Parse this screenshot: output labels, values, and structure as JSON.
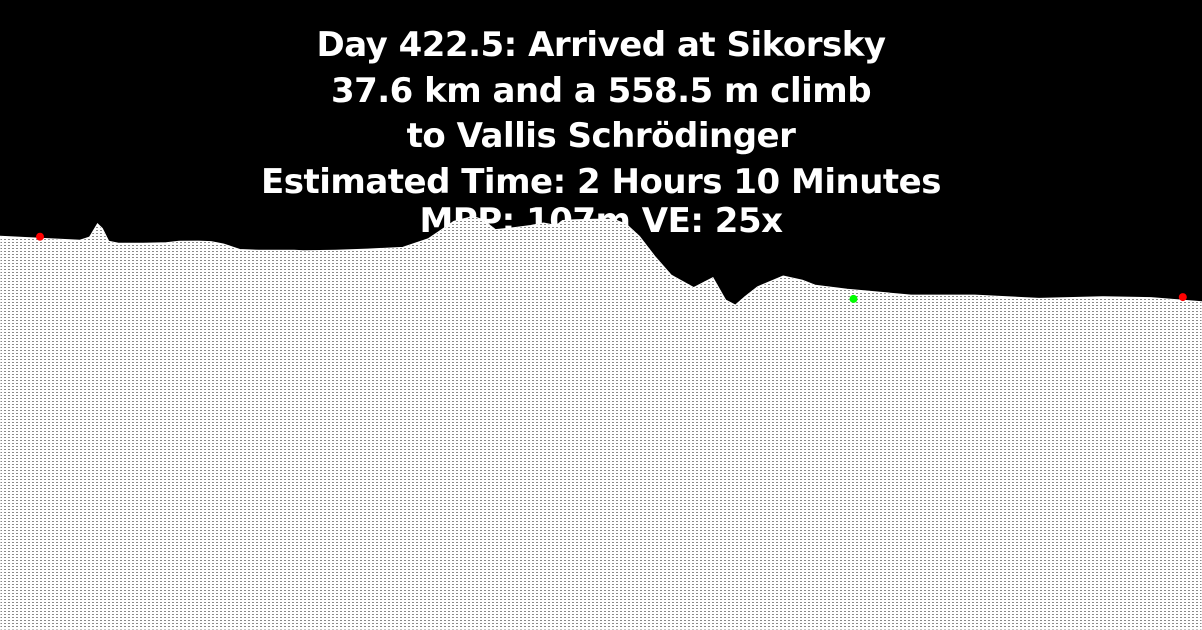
{
  "header": {
    "line1": "Day 422.5: Arrived at Sikorsky",
    "line2": "37.6 km and a 558.5 m climb",
    "line3": "to Vallis Schrödinger",
    "line4": "Estimated Time: 2 Hours 10 Minutes",
    "line5": "MPP: 107m VE: 25x"
  },
  "colors": {
    "background": "#000000",
    "text": "#ffffff",
    "terrain": "#ffffff",
    "marker_red": "#ff0000",
    "marker_green": "#00ff00"
  },
  "chart_data": {
    "type": "area",
    "title": "Day 422.5: Arrived at Sikorsky",
    "xlabel": "",
    "ylabel": "",
    "grid": false,
    "x": [
      0,
      1.25,
      2.5,
      2.8,
      3.05,
      3.2,
      3.4,
      3.7,
      4.5,
      5.2,
      5.6,
      6.2,
      6.6,
      7.0,
      7.5,
      8.1,
      8.6,
      9.2,
      9.5,
      10.5,
      11.5,
      12.6,
      13.4,
      14.2,
      14.8,
      15.1,
      15.5,
      16.0,
      16.6,
      17.0,
      17.4,
      17.6,
      18.0,
      18.6,
      19.2,
      19.6,
      20.0,
      20.5,
      21.0,
      21.7,
      22.3,
      22.7,
      23.0,
      23.3,
      23.7,
      24.5,
      25.1,
      25.5,
      26.5,
      28.5,
      30.5,
      32.5,
      34.5,
      36.0,
      37.6
    ],
    "elevation_profile": [
      -1850,
      -1873,
      -1898,
      -1860,
      -1700,
      -1755,
      -1910,
      -1935,
      -1935,
      -1929,
      -1910,
      -1908,
      -1915,
      -1945,
      -2010,
      -2020,
      -2020,
      -2020,
      -2025,
      -2018,
      -2005,
      -1985,
      -1880,
      -1670,
      -1610,
      -1650,
      -1770,
      -1750,
      -1720,
      -1690,
      -1720,
      -1660,
      -1650,
      -1646,
      -1646,
      -1710,
      -1850,
      -2100,
      -2320,
      -2470,
      -2350,
      -2620,
      -2680,
      -2580,
      -2460,
      -2330,
      -2380,
      -2440,
      -2490,
      -2560,
      -2560,
      -2600,
      -2580,
      -2590,
      -2640
    ],
    "markers": [
      {
        "x": 1.25,
        "elevation": -1855,
        "color": "red"
      },
      {
        "x": 26.7,
        "elevation": -2606,
        "color": "green"
      },
      {
        "x": 37.0,
        "elevation": -2584,
        "color": "red"
      }
    ],
    "xlim": [
      0,
      37.6
    ],
    "ylim": [
      -6600,
      1000
    ],
    "vertical_exaggeration": 25,
    "distance_km": 37.6,
    "climb_m": 558.5,
    "mpp_m": 107
  }
}
